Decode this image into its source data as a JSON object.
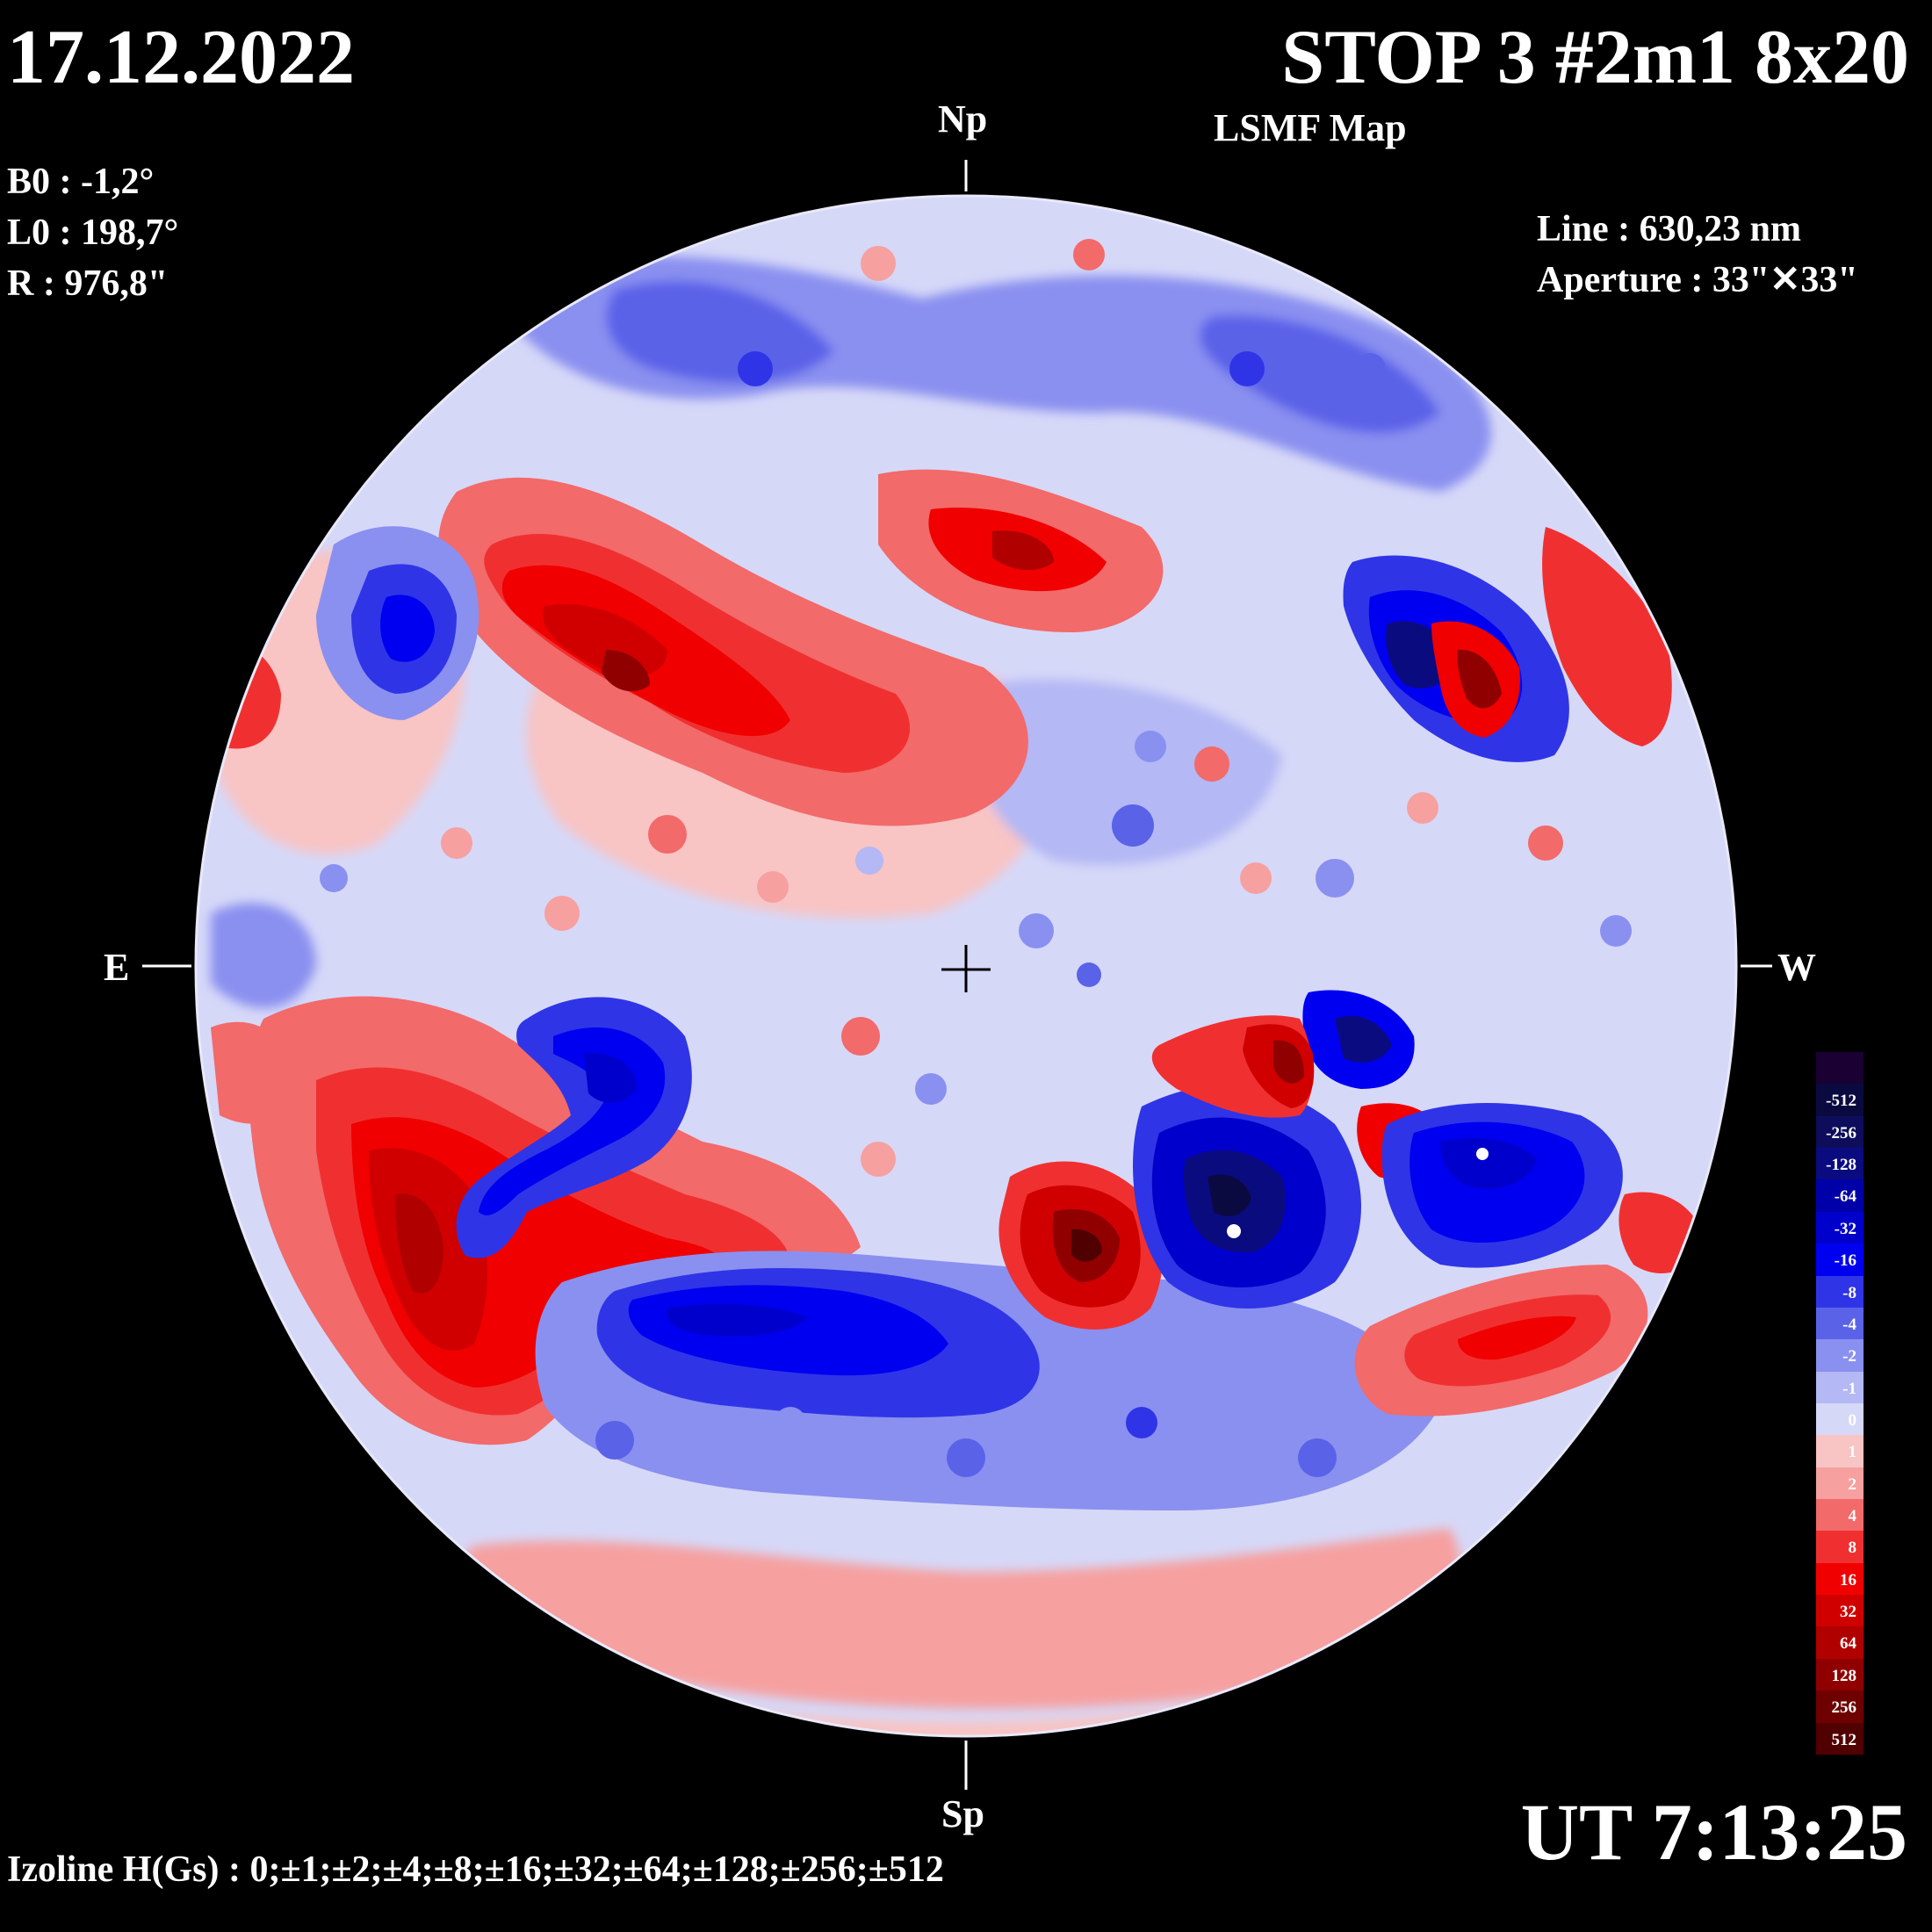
{
  "header": {
    "date": "17.12.2022",
    "title": "STOP 3 #2m1 8x20",
    "subtitle": "LSMF  Map"
  },
  "parameters": {
    "b0": "B0 : -1,2°",
    "l0": "L0 : 198,7°",
    "r": "R  : 976,8\""
  },
  "instrument": {
    "line": "Line :  630,23 nm",
    "aperture": "Aperture : 33\"✕33\""
  },
  "directions": {
    "north": "Np",
    "south": "Sp",
    "east": "E",
    "west": "W"
  },
  "footer": {
    "time": "UT 7:13:25",
    "izoline": "Izoline H(Gs) : 0;±1;±2;±4;±8;±16;±32;±64;±128;±256;±512"
  },
  "colorbar": {
    "levels": [
      {
        "label": "",
        "color": "#1a0033"
      },
      {
        "label": "-512",
        "color": "#0a0a40"
      },
      {
        "label": "-256",
        "color": "#0d0d5c"
      },
      {
        "label": "-128",
        "color": "#0b0b80"
      },
      {
        "label": "-64",
        "color": "#0000a8"
      },
      {
        "label": "-32",
        "color": "#0000cc"
      },
      {
        "label": "-16",
        "color": "#0000f0"
      },
      {
        "label": "-8",
        "color": "#2f35e6"
      },
      {
        "label": "-4",
        "color": "#5a62e8"
      },
      {
        "label": "-2",
        "color": "#8a90f0"
      },
      {
        "label": "-1",
        "color": "#b4b8f4"
      },
      {
        "label": "0",
        "color": "#d6d8f8"
      },
      {
        "label": "1",
        "color": "#f8c4c4"
      },
      {
        "label": "2",
        "color": "#f6a0a0"
      },
      {
        "label": "4",
        "color": "#f26a6a"
      },
      {
        "label": "8",
        "color": "#f03030"
      },
      {
        "label": "16",
        "color": "#f00000"
      },
      {
        "label": "32",
        "color": "#d00000"
      },
      {
        "label": "64",
        "color": "#b00000"
      },
      {
        "label": "128",
        "color": "#900000"
      },
      {
        "label": "256",
        "color": "#6e0000"
      },
      {
        "label": "512",
        "color": "#500000"
      }
    ]
  },
  "regions": {
    "positive": [
      {
        "name": "east-upper-positive",
        "level": 4
      },
      {
        "name": "east-upper-core",
        "level": 32
      },
      {
        "name": "central-north-positive",
        "level": 16
      },
      {
        "name": "east-lower-positive",
        "level": 32
      },
      {
        "name": "central-south-positive",
        "level": 128
      },
      {
        "name": "west-middle-positive",
        "level": 64
      },
      {
        "name": "west-upper-positive",
        "level": 128
      },
      {
        "name": "west-lower-positive",
        "level": 16
      },
      {
        "name": "east-limb-positive",
        "level": 16
      },
      {
        "name": "south-limb-positive",
        "level": 2
      }
    ],
    "negative": [
      {
        "name": "east-upper-negative",
        "level": -16
      },
      {
        "name": "east-lower-negative",
        "level": -32
      },
      {
        "name": "south-central-negative",
        "level": -32
      },
      {
        "name": "west-middle-negative",
        "level": -256
      },
      {
        "name": "west-lower-negative",
        "level": -32
      },
      {
        "name": "west-upper-negative",
        "level": -64
      },
      {
        "name": "north-negative",
        "level": -8
      }
    ]
  }
}
